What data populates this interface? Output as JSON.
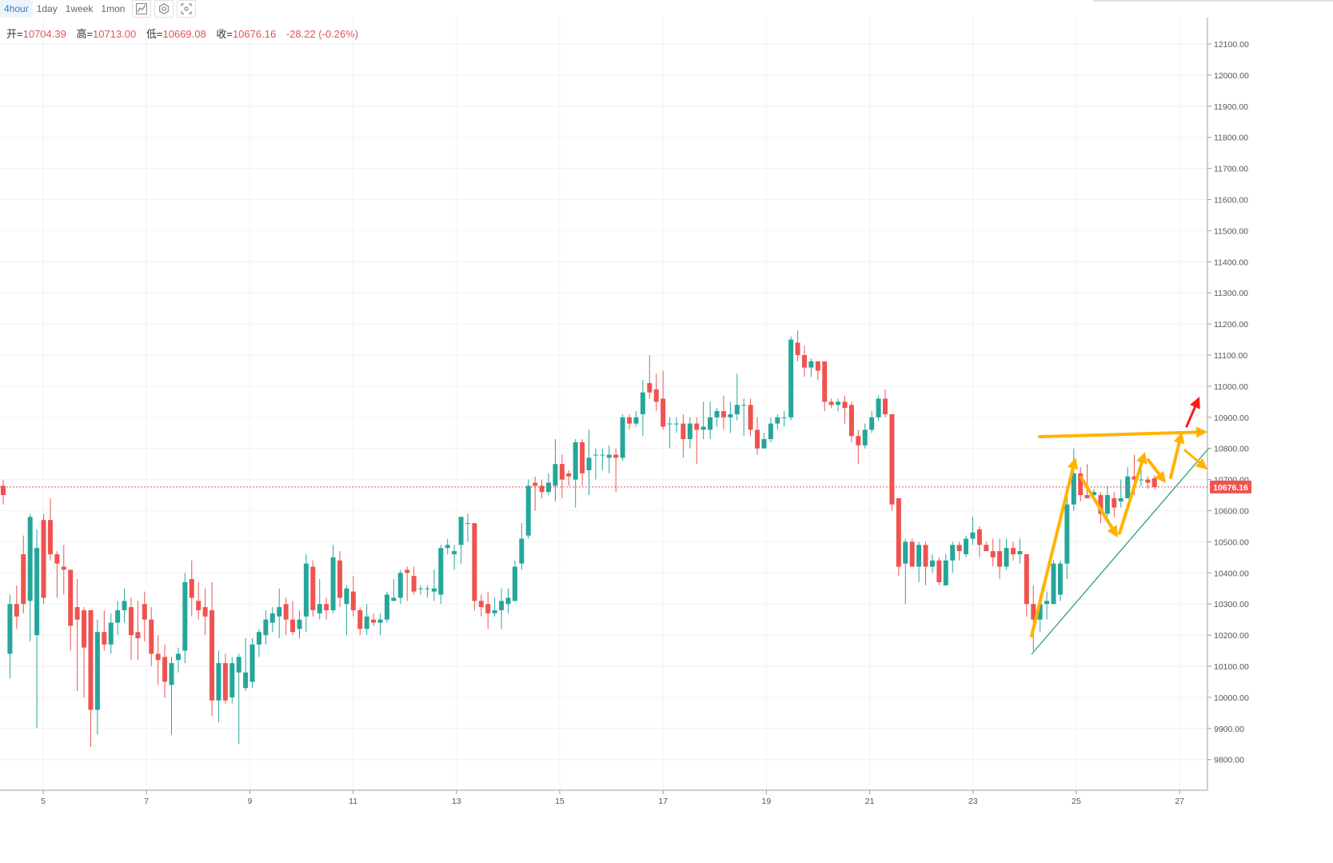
{
  "toolbar": {
    "timeframes": [
      "4hour",
      "1day",
      "1week",
      "1mon"
    ],
    "active_timeframe": "4hour",
    "icons": [
      "line-chart-icon",
      "settings-gear-icon",
      "screenshot-icon"
    ]
  },
  "ohlc": {
    "open_label": "开=",
    "open": "10704.39",
    "high_label": "高=",
    "high": "10713.00",
    "low_label": "低=",
    "low": "10669.08",
    "close_label": "收=",
    "close": "10676.16",
    "change": "-28.22 (-0.26%)"
  },
  "price_tag": "10676.16",
  "colors": {
    "up": "#26a69a",
    "down": "#ef5350",
    "arrow": "#ffb300",
    "arrow_alt": "#f5a623",
    "red_arrow": "#ff1a1a",
    "trend": "#2e9e75"
  },
  "chart_data": {
    "type": "candlestick",
    "title": "",
    "xlabel": "",
    "ylabel": "",
    "y_ticks": [
      9800,
      9900,
      10000,
      10100,
      10200,
      10300,
      10400,
      10500,
      10600,
      10700,
      10800,
      10900,
      11000,
      11100,
      11200,
      11300,
      11400,
      11500,
      11600,
      11700,
      11800,
      11900,
      12000,
      12100
    ],
    "ylim": [
      9700,
      12200
    ],
    "x_ticks": [
      "5",
      "7",
      "9",
      "11",
      "13",
      "15",
      "17",
      "19",
      "21",
      "23",
      "25",
      "27"
    ],
    "last_price": 10676.16,
    "candles": [
      [
        10680,
        10650,
        10700,
        10620
      ],
      [
        10140,
        10300,
        10330,
        10060
      ],
      [
        10300,
        10260,
        10360,
        10220
      ],
      [
        10460,
        10300,
        10520,
        10270
      ],
      [
        10310,
        10580,
        10590,
        10180
      ],
      [
        10200,
        10480,
        10540,
        9900
      ],
      [
        10570,
        10320,
        10590,
        10300
      ],
      [
        10570,
        10460,
        10640,
        10440
      ],
      [
        10460,
        10430,
        10470,
        10320
      ],
      [
        10420,
        10410,
        10490,
        10330
      ],
      [
        10410,
        10230,
        10410,
        10150
      ],
      [
        10290,
        10250,
        10380,
        10020
      ],
      [
        10280,
        10160,
        10290,
        10000
      ],
      [
        10280,
        9960,
        10280,
        9840
      ],
      [
        9960,
        10210,
        10250,
        9880
      ],
      [
        10210,
        10170,
        10280,
        10150
      ],
      [
        10170,
        10240,
        10270,
        10140
      ],
      [
        10240,
        10280,
        10310,
        10200
      ],
      [
        10280,
        10310,
        10350,
        10240
      ],
      [
        10290,
        10200,
        10320,
        10120
      ],
      [
        10210,
        10190,
        10310,
        10120
      ],
      [
        10300,
        10250,
        10340,
        10180
      ],
      [
        10250,
        10140,
        10290,
        10100
      ],
      [
        10140,
        10120,
        10200,
        10040
      ],
      [
        10130,
        10050,
        10170,
        10000
      ],
      [
        10040,
        10110,
        10130,
        9880
      ],
      [
        10120,
        10140,
        10160,
        10080
      ],
      [
        10150,
        10370,
        10400,
        10110
      ],
      [
        10380,
        10320,
        10440,
        10260
      ],
      [
        10310,
        10280,
        10370,
        10250
      ],
      [
        10290,
        10260,
        10350,
        10200
      ],
      [
        10280,
        9990,
        10370,
        9940
      ],
      [
        9990,
        10110,
        10150,
        9920
      ],
      [
        10110,
        9990,
        10140,
        9980
      ],
      [
        10000,
        10110,
        10130,
        9980
      ],
      [
        10080,
        10130,
        10140,
        9850
      ],
      [
        10030,
        10080,
        10190,
        10020
      ],
      [
        10050,
        10170,
        10190,
        10030
      ],
      [
        10170,
        10210,
        10220,
        10130
      ],
      [
        10200,
        10250,
        10280,
        10170
      ],
      [
        10240,
        10270,
        10290,
        10210
      ],
      [
        10260,
        10290,
        10350,
        10190
      ],
      [
        10300,
        10250,
        10320,
        10200
      ],
      [
        10250,
        10210,
        10310,
        10200
      ],
      [
        10220,
        10250,
        10280,
        10190
      ],
      [
        10260,
        10430,
        10460,
        10210
      ],
      [
        10420,
        10280,
        10440,
        10260
      ],
      [
        10270,
        10300,
        10380,
        10250
      ],
      [
        10300,
        10280,
        10320,
        10250
      ],
      [
        10280,
        10450,
        10490,
        10270
      ],
      [
        10440,
        10320,
        10470,
        10290
      ],
      [
        10300,
        10350,
        10360,
        10200
      ],
      [
        10340,
        10280,
        10390,
        10260
      ],
      [
        10280,
        10220,
        10290,
        10200
      ],
      [
        10220,
        10260,
        10300,
        10200
      ],
      [
        10250,
        10240,
        10270,
        10230
      ],
      [
        10240,
        10250,
        10270,
        10200
      ],
      [
        10250,
        10330,
        10340,
        10240
      ],
      [
        10310,
        10320,
        10380,
        10310
      ],
      [
        10320,
        10400,
        10410,
        10300
      ],
      [
        10410,
        10400,
        10420,
        10310
      ],
      [
        10390,
        10340,
        10420,
        10330
      ],
      [
        10350,
        10350,
        10360,
        10330
      ],
      [
        10350,
        10350,
        10360,
        10320
      ],
      [
        10340,
        10350,
        10410,
        10310
      ],
      [
        10330,
        10480,
        10490,
        10300
      ],
      [
        10480,
        10490,
        10510,
        10460
      ],
      [
        10460,
        10470,
        10490,
        10410
      ],
      [
        10490,
        10580,
        10580,
        10430
      ],
      [
        10560,
        10560,
        10590,
        10500
      ],
      [
        10560,
        10310,
        10560,
        10280
      ],
      [
        10310,
        10290,
        10330,
        10260
      ],
      [
        10300,
        10270,
        10340,
        10220
      ],
      [
        10270,
        10280,
        10320,
        10260
      ],
      [
        10280,
        10310,
        10350,
        10220
      ],
      [
        10300,
        10320,
        10350,
        10270
      ],
      [
        10310,
        10420,
        10440,
        10310
      ],
      [
        10430,
        10510,
        10560,
        10410
      ],
      [
        10520,
        10680,
        10700,
        10510
      ],
      [
        10690,
        10680,
        10710,
        10600
      ],
      [
        10680,
        10660,
        10700,
        10640
      ],
      [
        10660,
        10690,
        10720,
        10650
      ],
      [
        10680,
        10750,
        10830,
        10630
      ],
      [
        10750,
        10700,
        10780,
        10640
      ],
      [
        10720,
        10710,
        10730,
        10680
      ],
      [
        10700,
        10820,
        10830,
        10610
      ],
      [
        10820,
        10720,
        10830,
        10680
      ],
      [
        10730,
        10770,
        10860,
        10650
      ],
      [
        10780,
        10780,
        10800,
        10700
      ],
      [
        10780,
        10780,
        10800,
        10730
      ],
      [
        10770,
        10780,
        10810,
        10720
      ],
      [
        10780,
        10770,
        10800,
        10660
      ],
      [
        10770,
        10900,
        10910,
        10760
      ],
      [
        10900,
        10880,
        10910,
        10860
      ],
      [
        10880,
        10900,
        10920,
        10870
      ],
      [
        10910,
        10980,
        11020,
        10840
      ],
      [
        11010,
        10980,
        11100,
        10960
      ],
      [
        10990,
        10950,
        11040,
        10920
      ],
      [
        10960,
        10870,
        11050,
        10860
      ],
      [
        10880,
        10880,
        10900,
        10800
      ],
      [
        10880,
        10880,
        10900,
        10850
      ],
      [
        10880,
        10830,
        10910,
        10770
      ],
      [
        10830,
        10880,
        10900,
        10800
      ],
      [
        10880,
        10860,
        10900,
        10750
      ],
      [
        10860,
        10870,
        10950,
        10830
      ],
      [
        10860,
        10900,
        10950,
        10830
      ],
      [
        10900,
        10920,
        10930,
        10870
      ],
      [
        10920,
        10900,
        10970,
        10860
      ],
      [
        10900,
        10910,
        10950,
        10850
      ],
      [
        10910,
        10940,
        11040,
        10890
      ],
      [
        10940,
        10940,
        10960,
        10840
      ],
      [
        10940,
        10860,
        10960,
        10840
      ],
      [
        10860,
        10800,
        10900,
        10780
      ],
      [
        10800,
        10830,
        10850,
        10810
      ],
      [
        10830,
        10880,
        10900,
        10820
      ],
      [
        10880,
        10900,
        10910,
        10860
      ],
      [
        10900,
        10900,
        10920,
        10870
      ],
      [
        10900,
        11150,
        11160,
        10890
      ],
      [
        11140,
        11100,
        11180,
        11080
      ],
      [
        11100,
        11060,
        11130,
        11030
      ],
      [
        11060,
        11080,
        11090,
        11030
      ],
      [
        11080,
        11050,
        11070,
        11020
      ],
      [
        11080,
        10950,
        11080,
        10920
      ],
      [
        10950,
        10940,
        10960,
        10930
      ],
      [
        10940,
        10950,
        10960,
        10920
      ],
      [
        10950,
        10930,
        10970,
        10880
      ],
      [
        10940,
        10840,
        10950,
        10820
      ],
      [
        10840,
        10810,
        10860,
        10750
      ],
      [
        10810,
        10860,
        10880,
        10800
      ],
      [
        10860,
        10900,
        10920,
        10850
      ],
      [
        10900,
        10960,
        10970,
        10890
      ],
      [
        10960,
        10910,
        10990,
        10900
      ],
      [
        10910,
        10620,
        10910,
        10600
      ],
      [
        10640,
        10420,
        10640,
        10390
      ],
      [
        10430,
        10500,
        10510,
        10300
      ],
      [
        10500,
        10420,
        10510,
        10420
      ],
      [
        10420,
        10490,
        10500,
        10370
      ],
      [
        10490,
        10420,
        10500,
        10360
      ],
      [
        10420,
        10440,
        10460,
        10400
      ],
      [
        10440,
        10370,
        10450,
        10360
      ],
      [
        10360,
        10440,
        10460,
        10360
      ],
      [
        10440,
        10490,
        10500,
        10400
      ],
      [
        10490,
        10470,
        10500,
        10440
      ],
      [
        10460,
        10510,
        10520,
        10450
      ],
      [
        10510,
        10530,
        10580,
        10490
      ],
      [
        10540,
        10490,
        10550,
        10450
      ],
      [
        10490,
        10470,
        10500,
        10470
      ],
      [
        10470,
        10450,
        10510,
        10420
      ],
      [
        10470,
        10420,
        10510,
        10380
      ],
      [
        10420,
        10480,
        10510,
        10410
      ],
      [
        10480,
        10460,
        10500,
        10440
      ],
      [
        10460,
        10470,
        10510,
        10430
      ],
      [
        10460,
        10300,
        10460,
        10260
      ],
      [
        10300,
        10250,
        10360,
        10150
      ],
      [
        10250,
        10300,
        10330,
        10210
      ],
      [
        10300,
        10310,
        10340,
        10250
      ],
      [
        10300,
        10430,
        10440,
        10300
      ],
      [
        10330,
        10430,
        10440,
        10310
      ],
      [
        10430,
        10620,
        10650,
        10380
      ],
      [
        10620,
        10720,
        10800,
        10600
      ],
      [
        10720,
        10650,
        10740,
        10630
      ],
      [
        10650,
        10640,
        10750,
        10640
      ],
      [
        10650,
        10660,
        10670,
        10640
      ],
      [
        10650,
        10590,
        10660,
        10560
      ],
      [
        10590,
        10650,
        10680,
        10580
      ],
      [
        10640,
        10610,
        10660,
        10580
      ],
      [
        10630,
        10640,
        10700,
        10610
      ],
      [
        10640,
        10710,
        10740,
        10640
      ],
      [
        10710,
        10700,
        10780,
        10650
      ],
      [
        10700,
        10700,
        10740,
        10680
      ],
      [
        10700,
        10690,
        10710,
        10670
      ],
      [
        10704,
        10676,
        10713,
        10669
      ]
    ]
  }
}
